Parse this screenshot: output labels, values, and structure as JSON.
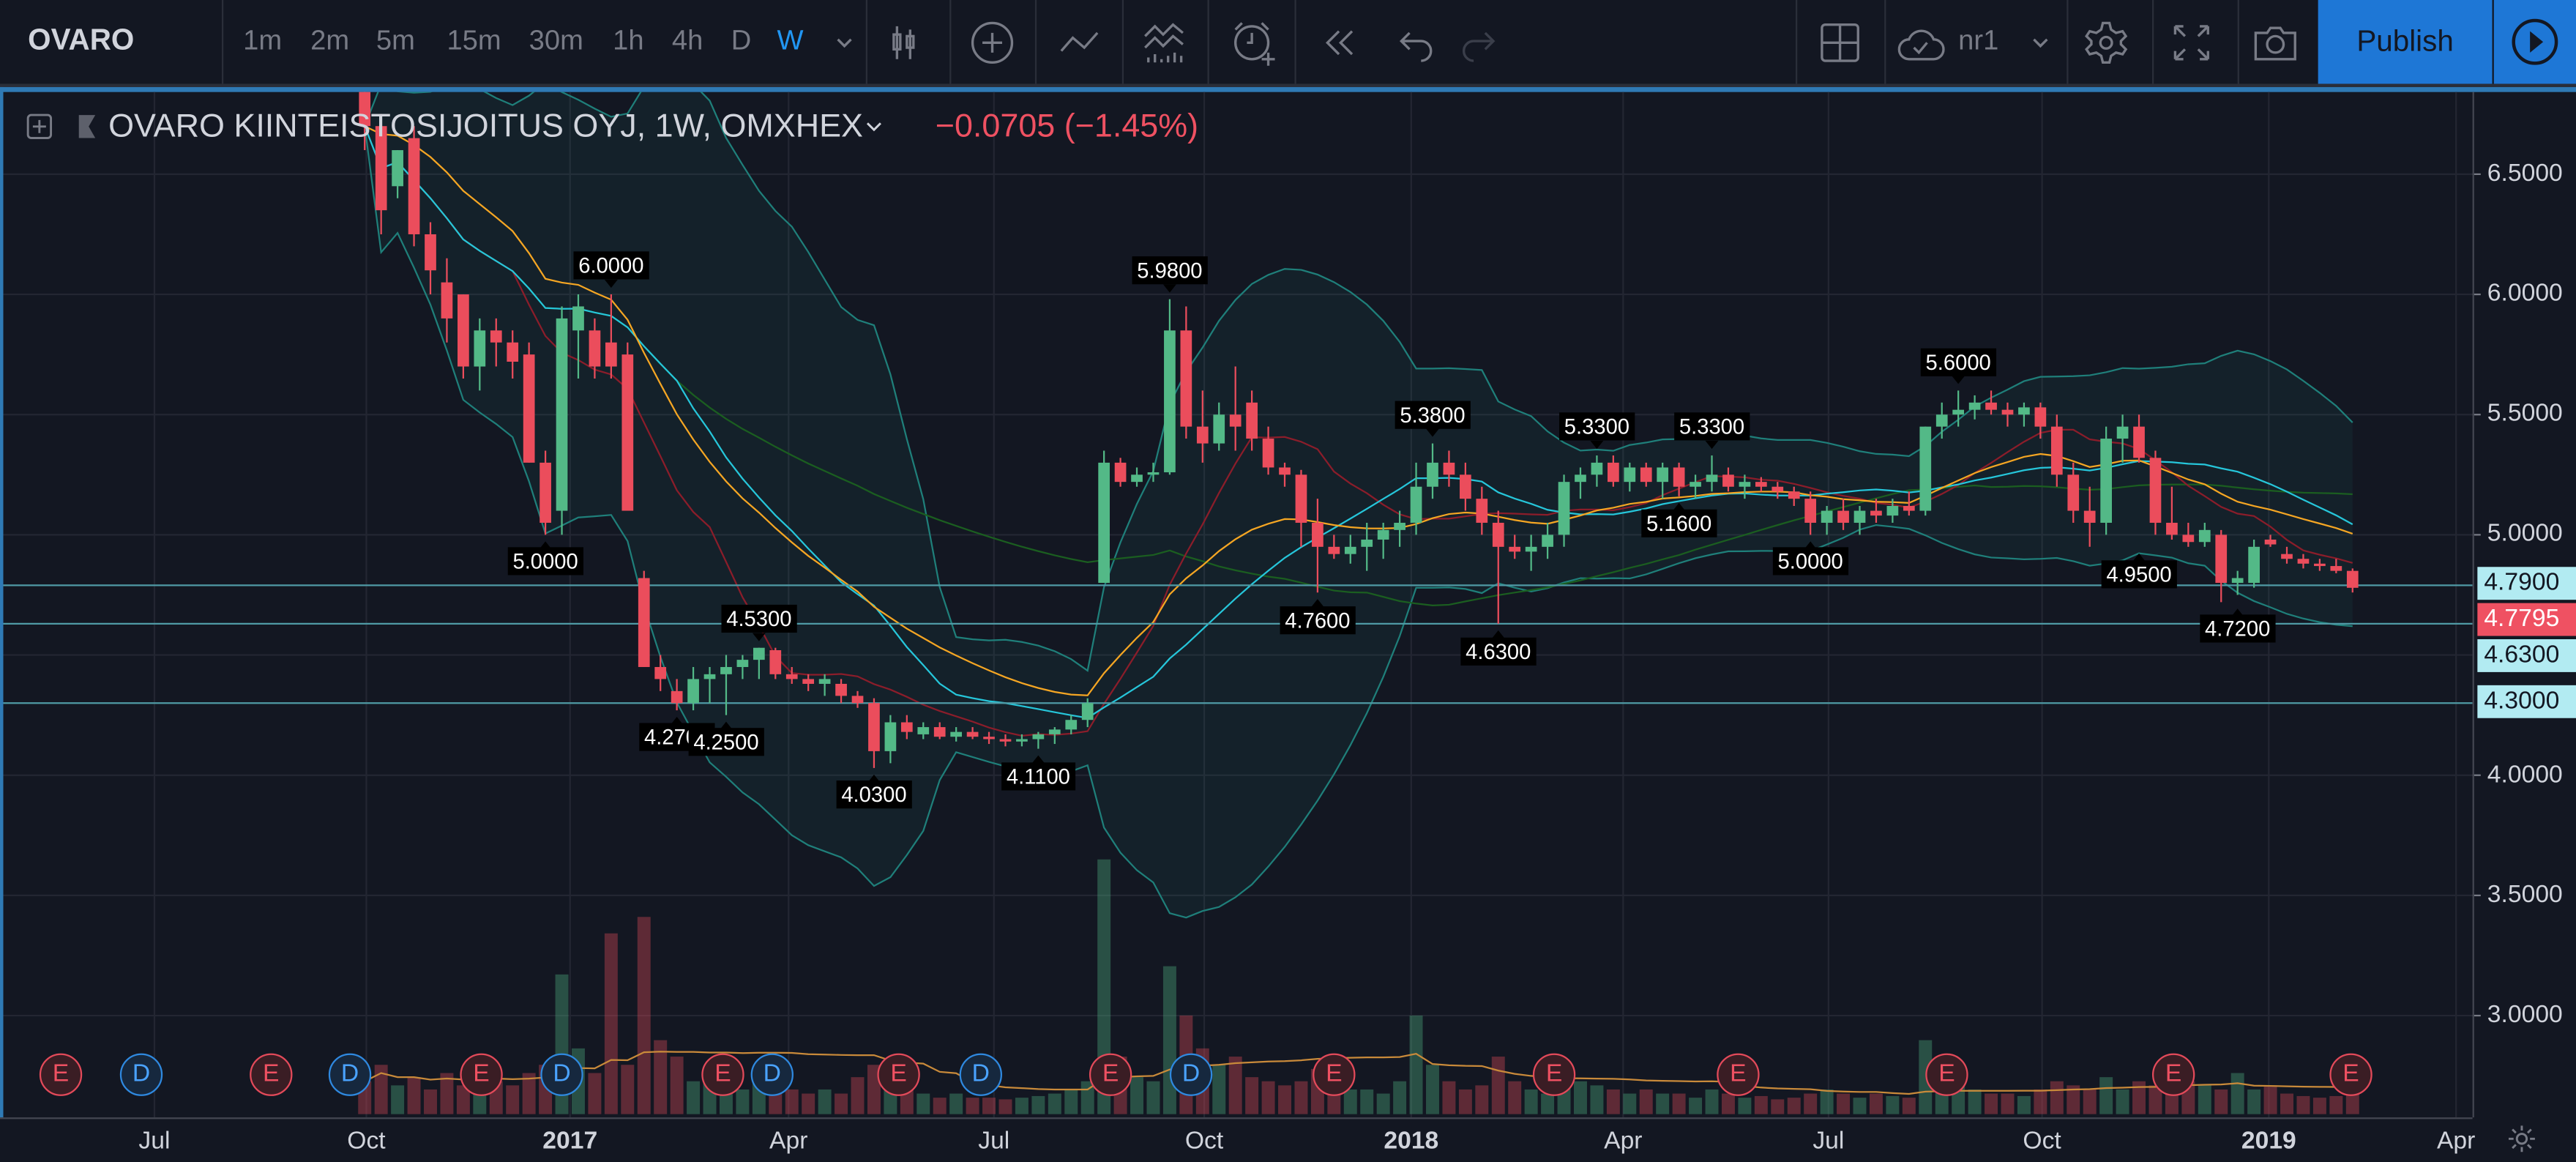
{
  "toolbar": {
    "symbol": "OVARO",
    "timeframes": [
      "1m",
      "2m",
      "5m",
      "15m",
      "30m",
      "1h",
      "4h",
      "D",
      "W"
    ],
    "active_timeframe": "W",
    "layout_name": "nr1",
    "publish_label": "Publish",
    "accent_color": "#1e77d6",
    "icons": [
      "chevron-down-icon",
      "candles-icon",
      "compare-plus-icon",
      "line-icon",
      "indicators-icon",
      "alert-icon",
      "replay-icon",
      "undo-icon",
      "redo-icon",
      "layout-grid-icon",
      "cloud-save-icon",
      "gear-icon",
      "fullscreen-icon",
      "camera-icon",
      "play-icon"
    ]
  },
  "legend": {
    "title": "OVARO KIINTEISTOSIJOITUS OYJ, 1W, OMXHEX",
    "change": "−0.0705 (−1.45%)"
  },
  "chart_data": {
    "type": "candlestick",
    "interval": "1W",
    "first_bar": "2016-10-03",
    "ylim": [
      2.7,
      6.85
    ],
    "price_ticks": [
      "6.5000",
      "6.0000",
      "5.5000",
      "5.0000",
      "4.0000",
      "3.5000",
      "3.0000"
    ],
    "time_ticks": [
      "Jul",
      "Oct",
      "2017",
      "Apr",
      "Jul",
      "Oct",
      "2018",
      "Apr",
      "Jul",
      "Oct",
      "2019",
      "Apr"
    ],
    "up_color": "#53b987",
    "down_color": "#eb4d5c",
    "ohlc": [
      [
        6.95,
        7.0,
        6.6,
        6.7
      ],
      [
        6.7,
        6.75,
        6.25,
        6.35
      ],
      [
        6.45,
        6.6,
        6.4,
        6.6
      ],
      [
        6.65,
        6.7,
        6.2,
        6.25
      ],
      [
        6.25,
        6.3,
        6.0,
        6.1
      ],
      [
        6.05,
        6.15,
        5.8,
        5.9
      ],
      [
        6.0,
        6.0,
        5.65,
        5.7
      ],
      [
        5.7,
        5.9,
        5.6,
        5.85
      ],
      [
        5.85,
        5.9,
        5.7,
        5.8
      ],
      [
        5.8,
        5.85,
        5.65,
        5.72
      ],
      [
        5.75,
        5.8,
        5.3,
        5.3
      ],
      [
        5.3,
        5.35,
        5.0,
        5.05
      ],
      [
        5.1,
        5.95,
        5.0,
        5.9
      ],
      [
        5.85,
        6.0,
        5.65,
        5.95
      ],
      [
        5.85,
        5.9,
        5.65,
        5.7
      ],
      [
        5.8,
        6.0,
        5.65,
        5.7
      ],
      [
        5.75,
        5.8,
        5.1,
        5.1
      ],
      [
        4.82,
        4.85,
        4.45,
        4.45
      ],
      [
        4.45,
        4.5,
        4.35,
        4.4
      ],
      [
        4.35,
        4.4,
        4.27,
        4.3
      ],
      [
        4.3,
        4.45,
        4.27,
        4.4
      ],
      [
        4.4,
        4.45,
        4.3,
        4.42
      ],
      [
        4.42,
        4.5,
        4.25,
        4.45
      ],
      [
        4.45,
        4.5,
        4.4,
        4.48
      ],
      [
        4.48,
        4.53,
        4.4,
        4.53
      ],
      [
        4.52,
        4.53,
        4.4,
        4.42
      ],
      [
        4.42,
        4.45,
        4.38,
        4.4
      ],
      [
        4.4,
        4.42,
        4.35,
        4.38
      ],
      [
        4.38,
        4.42,
        4.33,
        4.4
      ],
      [
        4.38,
        4.4,
        4.3,
        4.33
      ],
      [
        4.33,
        4.35,
        4.28,
        4.3
      ],
      [
        4.3,
        4.32,
        4.03,
        4.1
      ],
      [
        4.1,
        4.25,
        4.05,
        4.22
      ],
      [
        4.22,
        4.25,
        4.15,
        4.18
      ],
      [
        4.17,
        4.22,
        4.15,
        4.2
      ],
      [
        4.2,
        4.22,
        4.15,
        4.16
      ],
      [
        4.16,
        4.2,
        4.14,
        4.18
      ],
      [
        4.18,
        4.2,
        4.15,
        4.16
      ],
      [
        4.16,
        4.18,
        4.13,
        4.15
      ],
      [
        4.15,
        4.17,
        4.12,
        4.14
      ],
      [
        4.14,
        4.17,
        4.12,
        4.15
      ],
      [
        4.15,
        4.18,
        4.11,
        4.17
      ],
      [
        4.17,
        4.2,
        4.13,
        4.19
      ],
      [
        4.19,
        4.25,
        4.17,
        4.23
      ],
      [
        4.23,
        4.32,
        4.2,
        4.3
      ],
      [
        4.8,
        5.35,
        4.8,
        5.3
      ],
      [
        5.3,
        5.32,
        5.2,
        5.22
      ],
      [
        5.22,
        5.28,
        5.2,
        5.25
      ],
      [
        5.25,
        5.3,
        5.22,
        5.26
      ],
      [
        5.26,
        5.98,
        5.25,
        5.85
      ],
      [
        5.85,
        5.95,
        5.4,
        5.45
      ],
      [
        5.45,
        5.6,
        5.3,
        5.38
      ],
      [
        5.38,
        5.55,
        5.35,
        5.5
      ],
      [
        5.5,
        5.7,
        5.35,
        5.45
      ],
      [
        5.55,
        5.6,
        5.35,
        5.4
      ],
      [
        5.4,
        5.45,
        5.25,
        5.28
      ],
      [
        5.28,
        5.3,
        5.2,
        5.25
      ],
      [
        5.25,
        5.27,
        4.95,
        5.05
      ],
      [
        5.05,
        5.15,
        4.76,
        4.95
      ],
      [
        4.95,
        5.0,
        4.9,
        4.92
      ],
      [
        4.92,
        5.0,
        4.88,
        4.95
      ],
      [
        4.95,
        5.05,
        4.85,
        4.98
      ],
      [
        4.98,
        5.05,
        4.9,
        5.02
      ],
      [
        5.02,
        5.1,
        4.95,
        5.05
      ],
      [
        5.05,
        5.3,
        5.0,
        5.2
      ],
      [
        5.2,
        5.38,
        5.15,
        5.3
      ],
      [
        5.3,
        5.35,
        5.2,
        5.25
      ],
      [
        5.25,
        5.3,
        5.1,
        5.15
      ],
      [
        5.15,
        5.2,
        5.0,
        5.05
      ],
      [
        5.05,
        5.1,
        4.63,
        4.95
      ],
      [
        4.95,
        5.0,
        4.9,
        4.93
      ],
      [
        4.93,
        5.0,
        4.85,
        4.95
      ],
      [
        4.95,
        5.05,
        4.9,
        5.0
      ],
      [
        5.0,
        5.25,
        4.95,
        5.22
      ],
      [
        5.22,
        5.28,
        5.15,
        5.25
      ],
      [
        5.25,
        5.33,
        5.2,
        5.3
      ],
      [
        5.3,
        5.33,
        5.2,
        5.22
      ],
      [
        5.22,
        5.3,
        5.18,
        5.28
      ],
      [
        5.28,
        5.3,
        5.2,
        5.22
      ],
      [
        5.22,
        5.3,
        5.15,
        5.28
      ],
      [
        5.28,
        5.3,
        5.16,
        5.2
      ],
      [
        5.2,
        5.25,
        5.15,
        5.22
      ],
      [
        5.22,
        5.33,
        5.18,
        5.25
      ],
      [
        5.25,
        5.28,
        5.18,
        5.2
      ],
      [
        5.2,
        5.25,
        5.15,
        5.22
      ],
      [
        5.22,
        5.24,
        5.18,
        5.2
      ],
      [
        5.2,
        5.22,
        5.15,
        5.18
      ],
      [
        5.18,
        5.2,
        5.12,
        5.15
      ],
      [
        5.15,
        5.18,
        5.0,
        5.05
      ],
      [
        5.05,
        5.12,
        5.0,
        5.1
      ],
      [
        5.1,
        5.15,
        5.02,
        5.05
      ],
      [
        5.05,
        5.12,
        5.0,
        5.1
      ],
      [
        5.1,
        5.15,
        5.05,
        5.08
      ],
      [
        5.08,
        5.15,
        5.05,
        5.12
      ],
      [
        5.12,
        5.18,
        5.08,
        5.1
      ],
      [
        5.1,
        5.45,
        5.08,
        5.45
      ],
      [
        5.45,
        5.55,
        5.4,
        5.5
      ],
      [
        5.5,
        5.6,
        5.45,
        5.52
      ],
      [
        5.52,
        5.58,
        5.48,
        5.55
      ],
      [
        5.55,
        5.6,
        5.5,
        5.52
      ],
      [
        5.52,
        5.55,
        5.45,
        5.5
      ],
      [
        5.5,
        5.55,
        5.45,
        5.53
      ],
      [
        5.53,
        5.55,
        5.4,
        5.45
      ],
      [
        5.45,
        5.5,
        5.2,
        5.25
      ],
      [
        5.25,
        5.3,
        5.05,
        5.1
      ],
      [
        5.1,
        5.2,
        4.95,
        5.05
      ],
      [
        5.05,
        5.45,
        5.0,
        5.4
      ],
      [
        5.4,
        5.5,
        5.3,
        5.45
      ],
      [
        5.45,
        5.5,
        5.3,
        5.32
      ],
      [
        5.32,
        5.35,
        5.0,
        5.05
      ],
      [
        5.05,
        5.2,
        4.98,
        5.0
      ],
      [
        5.0,
        5.05,
        4.95,
        4.97
      ],
      [
        4.97,
        5.05,
        4.95,
        5.02
      ],
      [
        5.0,
        5.02,
        4.72,
        4.8
      ],
      [
        4.8,
        4.85,
        4.75,
        4.82
      ],
      [
        4.8,
        4.98,
        4.78,
        4.95
      ],
      [
        4.98,
        5.0,
        4.95,
        4.96
      ],
      [
        4.92,
        4.95,
        4.88,
        4.9
      ],
      [
        4.9,
        4.92,
        4.86,
        4.88
      ],
      [
        4.88,
        4.9,
        4.85,
        4.87
      ],
      [
        4.87,
        4.9,
        4.84,
        4.85
      ],
      [
        4.85,
        4.86,
        4.76,
        4.7795
      ]
    ],
    "volume": [
      40,
      60,
      35,
      45,
      30,
      50,
      35,
      55,
      40,
      35,
      50,
      60,
      170,
      80,
      50,
      220,
      60,
      240,
      90,
      70,
      40,
      45,
      35,
      30,
      40,
      50,
      30,
      25,
      30,
      25,
      45,
      60,
      40,
      30,
      25,
      20,
      25,
      20,
      20,
      18,
      20,
      22,
      25,
      30,
      40,
      310,
      70,
      45,
      40,
      180,
      120,
      80,
      60,
      70,
      45,
      40,
      35,
      40,
      55,
      35,
      30,
      30,
      25,
      40,
      120,
      60,
      40,
      30,
      35,
      70,
      40,
      30,
      25,
      50,
      40,
      35,
      30,
      25,
      30,
      25,
      25,
      20,
      30,
      25,
      20,
      22,
      18,
      20,
      25,
      30,
      25,
      20,
      25,
      22,
      20,
      90,
      40,
      35,
      30,
      25,
      25,
      22,
      30,
      40,
      35,
      30,
      45,
      30,
      40,
      35,
      45,
      40,
      35,
      30,
      50,
      30,
      35,
      25,
      22,
      20,
      22,
      25
    ],
    "annotations": [
      {
        "text": "6.0000",
        "kind": "high",
        "date": "2017-01-16",
        "price": 6.0
      },
      {
        "text": "5.0000",
        "kind": "low",
        "date": "2016-12-19",
        "price": 5.0
      },
      {
        "text": "4.5300",
        "kind": "high",
        "date": "2017-03-20",
        "price": 4.53
      },
      {
        "text": "4.2700",
        "kind": "low",
        "date": "2017-02-13",
        "price": 4.27
      },
      {
        "text": "4.2500",
        "kind": "low",
        "date": "2017-03-06",
        "price": 4.25
      },
      {
        "text": "4.0300",
        "kind": "low",
        "date": "2017-05-08",
        "price": 4.03
      },
      {
        "text": "4.1100",
        "kind": "low",
        "date": "2017-07-17",
        "price": 4.11
      },
      {
        "text": "5.9800",
        "kind": "high",
        "date": "2017-09-11",
        "price": 5.98
      },
      {
        "text": "4.7600",
        "kind": "low",
        "date": "2017-11-13",
        "price": 4.76
      },
      {
        "text": "5.3800",
        "kind": "high",
        "date": "2018-01-01",
        "price": 5.38
      },
      {
        "text": "4.6300",
        "kind": "low",
        "date": "2018-01-29",
        "price": 4.63
      },
      {
        "text": "5.3300",
        "kind": "high",
        "date": "2018-03-12",
        "price": 5.33
      },
      {
        "text": "5.3300",
        "kind": "high",
        "date": "2018-04-30",
        "price": 5.33
      },
      {
        "text": "5.1600",
        "kind": "low",
        "date": "2018-04-16",
        "price": 5.16
      },
      {
        "text": "5.0000",
        "kind": "low",
        "date": "2018-06-11",
        "price": 5.0
      },
      {
        "text": "5.6000",
        "kind": "high",
        "date": "2018-08-13",
        "price": 5.6
      },
      {
        "text": "4.9500",
        "kind": "low",
        "date": "2018-10-29",
        "price": 4.95
      },
      {
        "text": "4.7200",
        "kind": "low",
        "date": "2018-12-10",
        "price": 4.72
      }
    ],
    "horizontal_lines": [
      {
        "price": 4.79,
        "label": "4.7900",
        "color": "#b2ebf2"
      },
      {
        "price": 4.63,
        "label": "4.6300",
        "color": "#b2ebf2"
      },
      {
        "price": 4.3,
        "label": "4.3000",
        "color": "#b2ebf2"
      }
    ],
    "last_price": {
      "label": "4.7795",
      "color": "#ef5162"
    },
    "events": [
      "E",
      "D",
      "E",
      "D",
      "E",
      "D",
      "E",
      "D",
      "E",
      "D",
      "E",
      "D",
      "E",
      "E",
      "E",
      "E",
      "E",
      "E"
    ]
  }
}
